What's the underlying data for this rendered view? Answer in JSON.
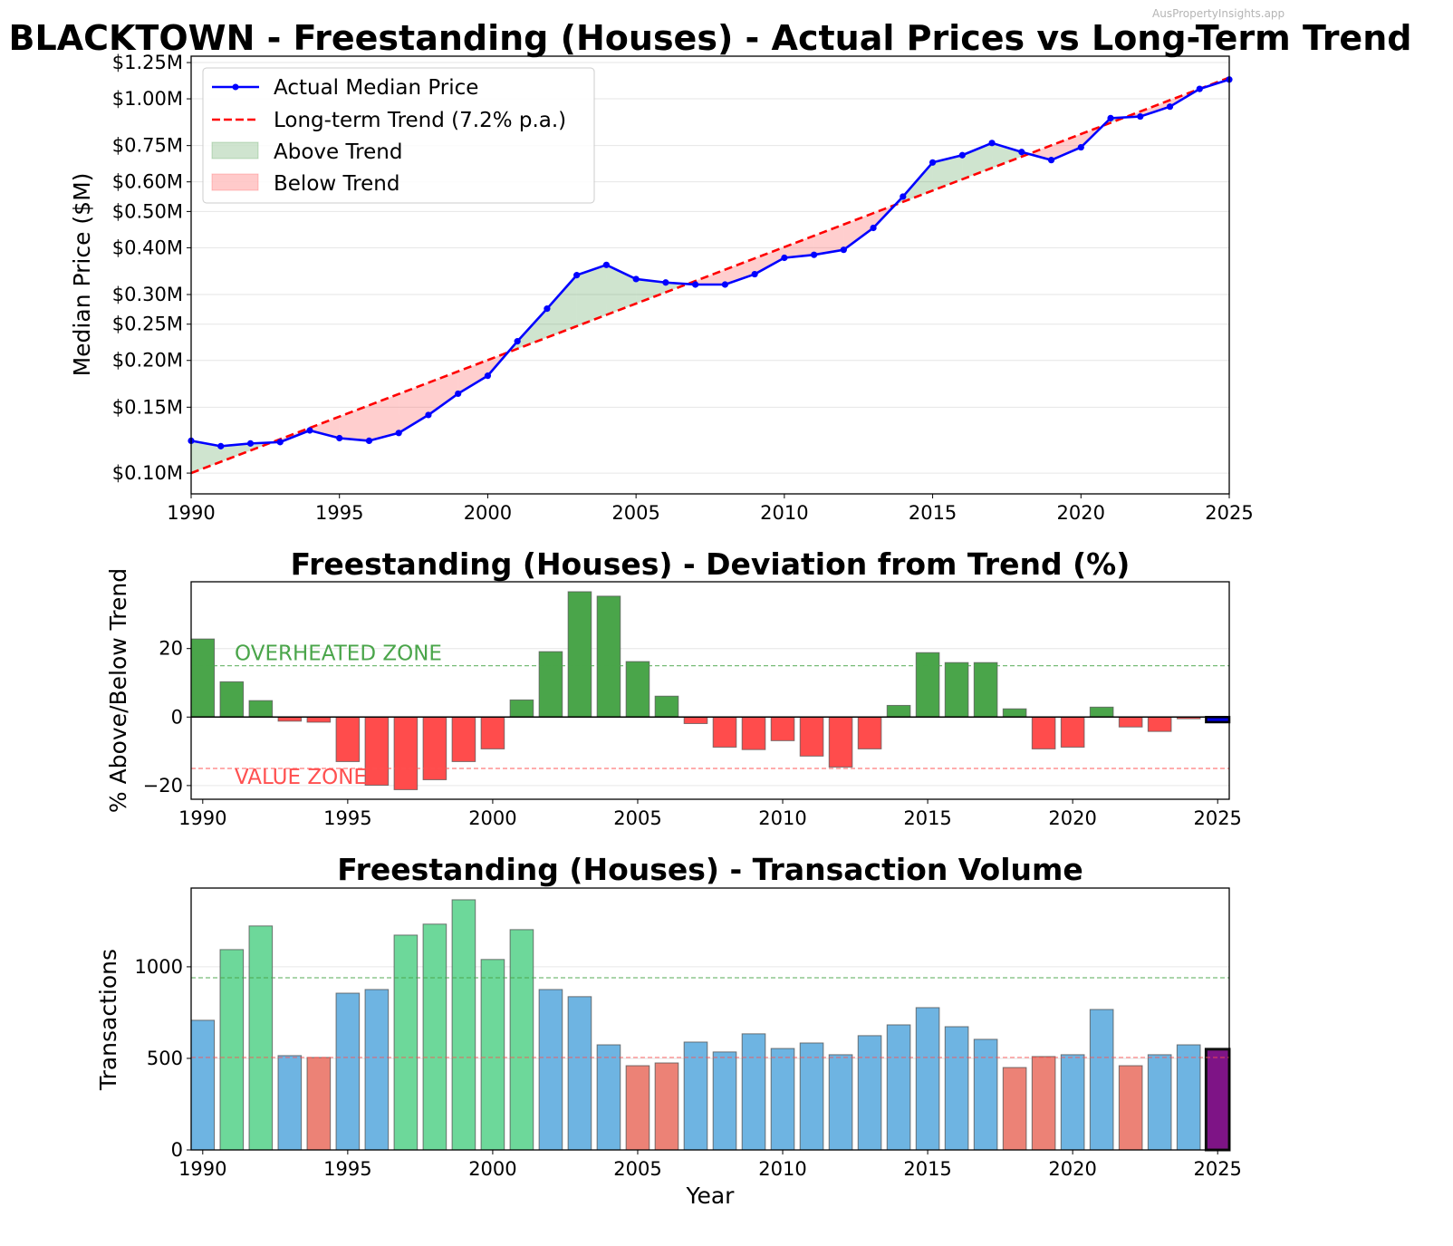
{
  "watermark": "AusPropertyInsights.app",
  "colors": {
    "actual_line": "#0000ff",
    "trend_line": "#ff0000",
    "above_fill": "#2e8b2e",
    "below_fill": "#ff5050",
    "dev_positive": "#4aa54a",
    "dev_negative": "#ff4c4c",
    "dev_latest": "#0000dd",
    "vol_high": "#6dd89a",
    "vol_normal": "#6eb4e2",
    "vol_low": "#ec8276",
    "vol_latest": "#7e1486",
    "overheated": "#4aa54a",
    "value": "#ff5050",
    "grid": "#e6e6e6"
  },
  "chart_data": [
    {
      "id": "price",
      "type": "line",
      "title": "BLACKTOWN - Freestanding (Houses) - Actual Prices vs Long-Term Trend",
      "xlabel": "",
      "ylabel": "Median Price ($M)",
      "yscale": "log",
      "xlim": [
        1990,
        2025
      ],
      "ylim": [
        0.088,
        1.3
      ],
      "xticks": [
        1990,
        1995,
        2000,
        2005,
        2010,
        2015,
        2020,
        2025
      ],
      "yticks": [
        {
          "value": 0.1,
          "label": "$0.10M"
        },
        {
          "value": 0.15,
          "label": "$0.15M"
        },
        {
          "value": 0.2,
          "label": "$0.20M"
        },
        {
          "value": 0.25,
          "label": "$0.25M"
        },
        {
          "value": 0.3,
          "label": "$0.30M"
        },
        {
          "value": 0.4,
          "label": "$0.40M"
        },
        {
          "value": 0.5,
          "label": "$0.50M"
        },
        {
          "value": 0.6,
          "label": "$0.60M"
        },
        {
          "value": 0.75,
          "label": "$0.75M"
        },
        {
          "value": 1.0,
          "label": "$1.00M"
        },
        {
          "value": 1.25,
          "label": "$1.25M"
        }
      ],
      "grid": true,
      "legend_position": "top-left",
      "legend": [
        {
          "label": "Actual Median Price",
          "kind": "line-marker"
        },
        {
          "label": "Long-term Trend (7.2% p.a.)",
          "kind": "dashed"
        },
        {
          "label": "Above Trend",
          "kind": "fill-green"
        },
        {
          "label": "Below Trend",
          "kind": "fill-red"
        }
      ],
      "x": [
        1990,
        1991,
        1992,
        1993,
        1994,
        1995,
        1996,
        1997,
        1998,
        1999,
        2000,
        2001,
        2002,
        2003,
        2004,
        2005,
        2006,
        2007,
        2008,
        2009,
        2010,
        2011,
        2012,
        2013,
        2014,
        2015,
        2016,
        2017,
        2018,
        2019,
        2020,
        2021,
        2022,
        2023,
        2024,
        2025
      ],
      "series": [
        {
          "name": "Actual Median Price",
          "values": [
            0.122,
            0.118,
            0.12,
            0.121,
            0.13,
            0.124,
            0.122,
            0.128,
            0.143,
            0.163,
            0.182,
            0.225,
            0.275,
            0.338,
            0.36,
            0.33,
            0.323,
            0.319,
            0.319,
            0.34,
            0.376,
            0.383,
            0.395,
            0.452,
            0.548,
            0.676,
            0.707,
            0.762,
            0.721,
            0.686,
            0.742,
            0.888,
            0.897,
            0.953,
            1.063,
            1.126
          ]
        },
        {
          "name": "Long-term Trend (7.2% p.a.)",
          "start_value": 0.1,
          "annual_growth": 0.072
        }
      ]
    },
    {
      "id": "deviation",
      "type": "bar",
      "title": "Freestanding (Houses) - Deviation from Trend (%)",
      "xlabel": "",
      "ylabel": "% Above/Below Trend",
      "xlim": [
        1989.6,
        2025.4
      ],
      "ylim": [
        -24,
        39.5
      ],
      "xticks": [
        1990,
        1995,
        2000,
        2005,
        2010,
        2015,
        2020,
        2025
      ],
      "yticks": [
        -20,
        0,
        20
      ],
      "yticklabels": [
        "−20",
        "0",
        "20"
      ],
      "grid": true,
      "thresholds": [
        {
          "value": 15,
          "label": "OVERHEATED ZONE",
          "color_key": "overheated"
        },
        {
          "value": -15,
          "label": "VALUE ZONE",
          "color_key": "value"
        }
      ],
      "categories": [
        1990,
        1991,
        1992,
        1993,
        1994,
        1995,
        1996,
        1997,
        1998,
        1999,
        2000,
        2001,
        2002,
        2003,
        2004,
        2005,
        2006,
        2007,
        2008,
        2009,
        2010,
        2011,
        2012,
        2013,
        2014,
        2015,
        2016,
        2017,
        2018,
        2019,
        2020,
        2021,
        2022,
        2023,
        2024,
        2025
      ],
      "values": [
        22.8,
        10.3,
        4.8,
        -1.2,
        -1.5,
        -13.0,
        -19.9,
        -21.2,
        -18.3,
        -13.0,
        -9.3,
        5.0,
        19.1,
        36.6,
        35.3,
        16.2,
        6.1,
        -1.9,
        -8.8,
        -9.5,
        -6.9,
        -11.4,
        -14.6,
        -9.3,
        3.4,
        18.8,
        15.9,
        15.9,
        2.4,
        -9.3,
        -8.8,
        2.9,
        -2.9,
        -4.2,
        -0.5,
        -1.5
      ]
    },
    {
      "id": "volume",
      "type": "bar",
      "title": "Freestanding (Houses) - Transaction Volume",
      "xlabel": "Year",
      "ylabel": "Transactions",
      "xlim": [
        1989.6,
        2025.4
      ],
      "ylim": [
        0,
        1430
      ],
      "xticks": [
        1990,
        1995,
        2000,
        2005,
        2010,
        2015,
        2020,
        2025
      ],
      "yticks": [
        0,
        500,
        1000
      ],
      "grid": true,
      "thresholds": [
        {
          "value": 940,
          "label": "",
          "color_key": "overheated"
        },
        {
          "value": 505,
          "label": "",
          "color_key": "value"
        }
      ],
      "categories": [
        1990,
        1991,
        1992,
        1993,
        1994,
        1995,
        1996,
        1997,
        1998,
        1999,
        2000,
        2001,
        2002,
        2003,
        2004,
        2005,
        2006,
        2007,
        2008,
        2009,
        2010,
        2011,
        2012,
        2013,
        2014,
        2015,
        2016,
        2017,
        2018,
        2019,
        2020,
        2021,
        2022,
        2023,
        2024,
        2025
      ],
      "values": [
        708,
        1094,
        1223,
        515,
        505,
        856,
        876,
        1173,
        1233,
        1366,
        1040,
        1203,
        876,
        837,
        574,
        460,
        475,
        589,
        535,
        634,
        554,
        584,
        520,
        624,
        683,
        777,
        673,
        604,
        450,
        510,
        520,
        767,
        460,
        520,
        574,
        550
      ],
      "bar_class": [
        "normal",
        "high",
        "high",
        "normal",
        "low",
        "normal",
        "normal",
        "high",
        "high",
        "high",
        "high",
        "high",
        "normal",
        "normal",
        "normal",
        "low",
        "low",
        "normal",
        "normal",
        "normal",
        "normal",
        "normal",
        "normal",
        "normal",
        "normal",
        "normal",
        "normal",
        "normal",
        "low",
        "low",
        "normal",
        "normal",
        "low",
        "normal",
        "normal",
        "latest"
      ]
    }
  ]
}
